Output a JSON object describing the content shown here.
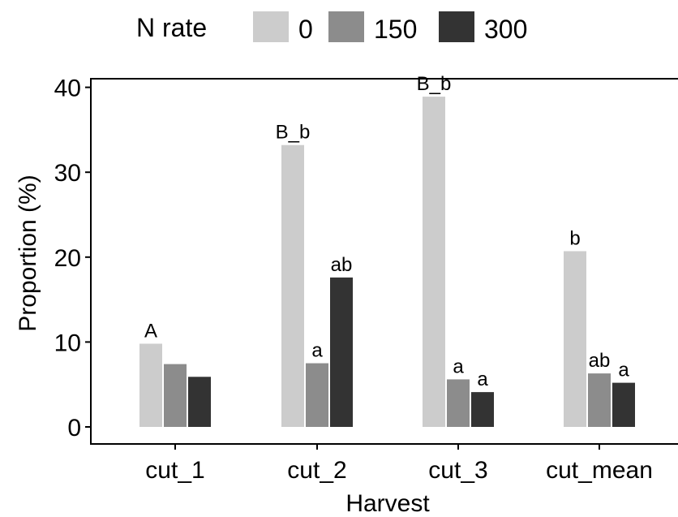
{
  "chart_data": {
    "type": "bar",
    "title": "",
    "xlabel": "Harvest",
    "ylabel": "Proportion (%)",
    "ylim": [
      0,
      40
    ],
    "yticks": [
      0,
      10,
      20,
      30,
      40
    ],
    "grid": false,
    "legend_position": "top",
    "legend_title": "N rate",
    "categories": [
      "cut_1",
      "cut_2",
      "cut_3",
      "cut_mean"
    ],
    "series": [
      {
        "name": "0",
        "color": "#cccccc",
        "values": [
          9.8,
          33.2,
          38.9,
          20.7
        ],
        "labels": [
          "A",
          "B_b",
          "B_b",
          "b"
        ]
      },
      {
        "name": "150",
        "color": "#8c8c8c",
        "values": [
          7.4,
          7.5,
          5.6,
          6.3
        ],
        "labels": [
          "",
          "a",
          "a",
          "ab"
        ]
      },
      {
        "name": "300",
        "color": "#333333",
        "values": [
          5.9,
          17.6,
          4.1,
          5.2
        ],
        "labels": [
          "",
          "ab",
          "a",
          "a"
        ]
      }
    ]
  }
}
